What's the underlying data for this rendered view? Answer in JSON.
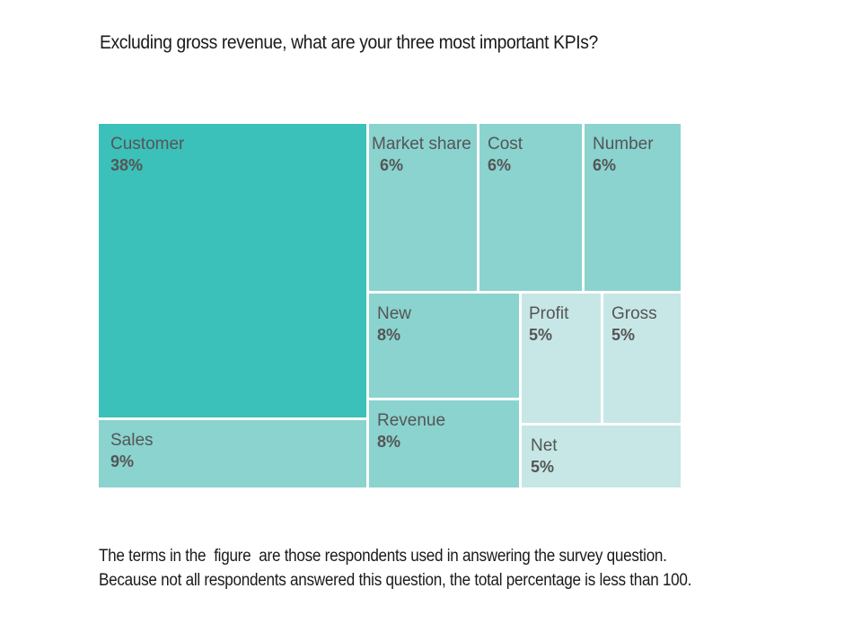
{
  "chart_data": {
    "type": "treemap",
    "title": "Excluding gross revenue, what are your three most important KPIs?",
    "items": [
      {
        "label": "Customer",
        "value": 38,
        "value_label": "38%",
        "color": "#3bc1ba"
      },
      {
        "label": "Sales",
        "value": 9,
        "value_label": "9%",
        "color": "#8ad3cf"
      },
      {
        "label": "Market share",
        "value": 6,
        "value_label": "6%",
        "color": "#8ad3cf"
      },
      {
        "label": "Cost",
        "value": 6,
        "value_label": "6%",
        "color": "#8ad3cf"
      },
      {
        "label": "Number",
        "value": 6,
        "value_label": "6%",
        "color": "#8ad3cf"
      },
      {
        "label": "New",
        "value": 8,
        "value_label": "8%",
        "color": "#8ad3cf"
      },
      {
        "label": "Revenue",
        "value": 8,
        "value_label": "8%",
        "color": "#8ad3cf"
      },
      {
        "label": "Profit",
        "value": 5,
        "value_label": "5%",
        "color": "#c6e7e5"
      },
      {
        "label": "Gross",
        "value": 5,
        "value_label": "5%",
        "color": "#c6e7e5"
      },
      {
        "label": "Net",
        "value": 5,
        "value_label": "5%",
        "color": "#c6e7e5"
      }
    ]
  },
  "footnote": {
    "line1": "The terms in the  figure  are those respondents used in answering the survey question.",
    "line2": "Because not all respondents answered this question, the total percentage is less than 100."
  }
}
